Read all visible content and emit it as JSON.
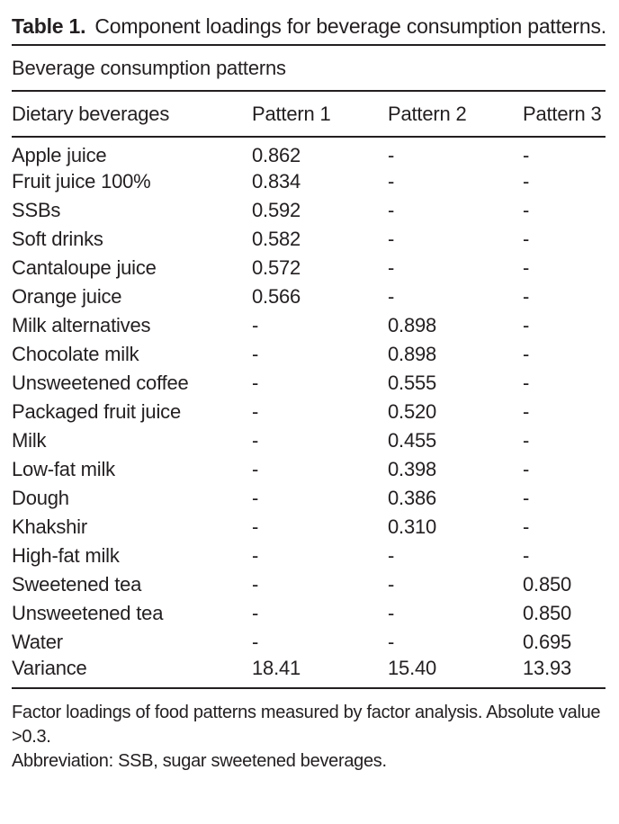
{
  "title": {
    "label": "Table 1.",
    "text": "Component loadings for beverage consumption patterns."
  },
  "table": {
    "group_header": "Beverage consumption patterns",
    "columns": [
      "Dietary beverages",
      "Pattern 1",
      "Pattern 2",
      "Pattern 3"
    ],
    "empty_marker": "-",
    "rows": [
      [
        "Apple juice",
        "0.862",
        "-",
        "-"
      ],
      [
        "Fruit juice 100%",
        "0.834",
        "-",
        "-"
      ],
      [
        "SSBs",
        "0.592",
        "-",
        "-"
      ],
      [
        "Soft drinks",
        "0.582",
        "-",
        "-"
      ],
      [
        "Cantaloupe juice",
        "0.572",
        "-",
        "-"
      ],
      [
        "Orange juice",
        "0.566",
        "-",
        "-"
      ],
      [
        "Milk alternatives",
        "-",
        "0.898",
        "-"
      ],
      [
        "Chocolate milk",
        "-",
        "0.898",
        "-"
      ],
      [
        "Unsweetened coffee",
        "-",
        "0.555",
        "-"
      ],
      [
        "Packaged fruit juice",
        "-",
        "0.520",
        "-"
      ],
      [
        "Milk",
        "-",
        "0.455",
        "-"
      ],
      [
        "Low-fat milk",
        "-",
        "0.398",
        "-"
      ],
      [
        "Dough",
        "-",
        "0.386",
        "-"
      ],
      [
        "Khakshir",
        "-",
        "0.310",
        "-"
      ],
      [
        "High-fat milk",
        "-",
        "-",
        "-"
      ],
      [
        "Sweetened tea",
        "-",
        "-",
        "0.850"
      ],
      [
        "Unsweetened tea",
        "-",
        "-",
        "0.850"
      ],
      [
        "Water",
        "-",
        "-",
        "0.695"
      ],
      [
        "Variance",
        "18.41",
        "15.40",
        "13.93"
      ]
    ]
  },
  "footnotes": {
    "note1": "Factor loadings of food patterns measured by factor analysis. Absolute value >0.3.",
    "note2": "Abbreviation: SSB, sugar sweetened beverages."
  },
  "colors": {
    "text": "#231f20",
    "rule": "#231f20",
    "background": "#ffffff"
  }
}
